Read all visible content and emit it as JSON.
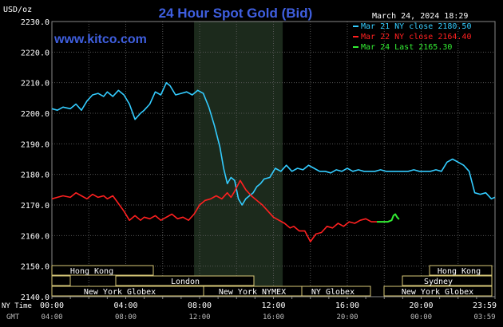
{
  "chart_data": {
    "type": "line",
    "title": "24 Hour Spot Gold (Bid)",
    "unit_label": "USD/oz",
    "site": "www.kitco.com",
    "timestamp": "March 24, 2024 18:29",
    "ylim": [
      2140,
      2230
    ],
    "y_ticks": [
      "2230.0",
      "2220.0",
      "2210.0",
      "2200.0",
      "2190.0",
      "2180.0",
      "2170.0",
      "2160.0",
      "2150.0",
      "2140.0"
    ],
    "x_label_ny": "NY Time",
    "x_label_gmt": "GMT",
    "x_ticks_ny": [
      "00:00",
      "04:00",
      "08:00",
      "12:00",
      "16:00",
      "20:00",
      "23:59"
    ],
    "x_ticks_gmt": [
      "04:00",
      "08:00",
      "12:00",
      "16:00",
      "20:00",
      "00:00",
      "03:59"
    ],
    "nymex_hours": [
      7.7,
      12.5
    ],
    "legend": [
      {
        "label": "Mar 21 NY close 2180.50",
        "color": "#33ccff"
      },
      {
        "label": "Mar 22 NY close 2164.40",
        "color": "#ff2020"
      },
      {
        "label": "Mar 24 Last 2165.30",
        "color": "#33ee33"
      }
    ],
    "sessions": [
      {
        "label": "Hong Kong",
        "start": 2.0,
        "end": 12.3,
        "row": 1
      },
      {
        "label": "London",
        "start": 0.0,
        "end": 24.0,
        "row": 2,
        "segments": [
          [
            0.0,
            0.9
          ],
          [
            7.8,
            24.0
          ]
        ]
      },
      {
        "label": "London",
        "start": 3.0,
        "end": 12.3,
        "row": 2
      },
      {
        "label": "New York Globex",
        "start": 0.0,
        "end": 7.7,
        "row": 3
      },
      {
        "label": "New York NYMEX",
        "start": 7.7,
        "end": 12.5,
        "row": 3
      },
      {
        "label": "NY Globex",
        "start": 12.5,
        "end": 17.0,
        "row": 3
      },
      {
        "label": "Hong Kong",
        "start": 18.8,
        "end": 24.0,
        "row": 1
      },
      {
        "label": "Sydney",
        "start": 17.0,
        "end": 24.0,
        "row": 2
      },
      {
        "label": "New York Globex",
        "start": 18.0,
        "end": 24.0,
        "row": 3
      }
    ],
    "series": [
      {
        "name": "Mar 21 NY close 2180.50",
        "color": "#33ccff",
        "x": [
          0,
          0.3,
          0.6,
          1.0,
          1.3,
          1.6,
          1.9,
          2.2,
          2.5,
          2.8,
          3.0,
          3.3,
          3.6,
          3.9,
          4.2,
          4.5,
          4.8,
          5.0,
          5.3,
          5.6,
          5.9,
          6.2,
          6.4,
          6.7,
          7.0,
          7.3,
          7.6,
          7.9,
          8.2,
          8.5,
          8.8,
          9.1,
          9.3,
          9.5,
          9.7,
          9.9,
          10.1,
          10.3,
          10.5,
          10.7,
          10.9,
          11.1,
          11.3,
          11.5,
          11.8,
          12.1,
          12.4,
          12.7,
          13.0,
          13.3,
          13.6,
          13.9,
          14.2,
          14.5,
          14.8,
          15.1,
          15.4,
          15.7,
          16.0,
          16.3,
          16.6,
          16.9,
          17.2,
          17.5,
          17.8,
          18.1,
          18.4,
          18.7,
          19.0,
          19.3,
          19.6,
          19.9,
          20.2,
          20.5,
          20.8,
          21.1,
          21.4,
          21.7,
          22.0,
          22.3,
          22.6,
          22.9,
          23.2,
          23.5,
          23.8,
          23.99
        ],
        "values": [
          2201.5,
          2201.0,
          2202.0,
          2201.5,
          2203.0,
          2201.0,
          2204.0,
          2206.0,
          2206.5,
          2205.5,
          2207.0,
          2205.5,
          2207.5,
          2206.0,
          2203.0,
          2198.0,
          2200.0,
          2201.0,
          2203.0,
          2207.0,
          2206.0,
          2210.0,
          2209.0,
          2206.0,
          2206.5,
          2207.0,
          2206.0,
          2207.5,
          2206.5,
          2202.0,
          2196.0,
          2189.0,
          2182.0,
          2177.0,
          2179.0,
          2178.0,
          2172.0,
          2170.0,
          2172.0,
          2173.0,
          2174.0,
          2176.0,
          2177.0,
          2178.5,
          2179.0,
          2182.0,
          2181.0,
          2183.0,
          2181.0,
          2182.0,
          2181.5,
          2183.0,
          2182.0,
          2181.0,
          2181.0,
          2180.5,
          2181.5,
          2181.0,
          2182.0,
          2181.0,
          2181.5,
          2181.0,
          2181.0,
          2181.0,
          2181.5,
          2181.0,
          2181.0,
          2181.0,
          2181.0,
          2181.0,
          2181.5,
          2181.0,
          2181.0,
          2181.0,
          2181.5,
          2181.0,
          2184.0,
          2185.0,
          2184.0,
          2183.0,
          2181.0,
          2174.0,
          2173.5,
          2174.0,
          2172.0,
          2172.5
        ]
      },
      {
        "name": "Mar 22 NY close 2164.40",
        "color": "#ff2020",
        "x": [
          0,
          0.3,
          0.6,
          1.0,
          1.3,
          1.6,
          1.9,
          2.2,
          2.5,
          2.8,
          3.0,
          3.3,
          3.6,
          3.9,
          4.2,
          4.5,
          4.8,
          5.0,
          5.3,
          5.6,
          5.9,
          6.2,
          6.5,
          6.8,
          7.1,
          7.4,
          7.7,
          8.0,
          8.3,
          8.6,
          8.9,
          9.2,
          9.5,
          9.7,
          9.9,
          10.2,
          10.5,
          10.8,
          11.1,
          11.4,
          11.7,
          12.0,
          12.3,
          12.6,
          12.9,
          13.1,
          13.4,
          13.7,
          14.0,
          14.3,
          14.6,
          14.9,
          15.2,
          15.5,
          15.8,
          16.1,
          16.4,
          16.7,
          17.0,
          17.3,
          17.6
        ],
        "values": [
          2172.0,
          2172.5,
          2173.0,
          2172.5,
          2174.0,
          2173.0,
          2172.0,
          2173.5,
          2172.5,
          2173.0,
          2172.0,
          2173.0,
          2170.5,
          2168.0,
          2165.0,
          2166.5,
          2165.0,
          2166.0,
          2165.5,
          2166.5,
          2165.0,
          2166.0,
          2167.0,
          2165.5,
          2166.0,
          2165.0,
          2167.0,
          2170.0,
          2171.5,
          2172.0,
          2173.0,
          2172.0,
          2174.0,
          2172.5,
          2174.5,
          2178.0,
          2175.0,
          2173.0,
          2171.5,
          2170.0,
          2168.0,
          2166.0,
          2165.0,
          2164.0,
          2162.5,
          2163.0,
          2161.5,
          2161.5,
          2158.0,
          2160.5,
          2161.0,
          2163.0,
          2162.5,
          2164.0,
          2163.0,
          2164.5,
          2164.0,
          2165.0,
          2165.5,
          2164.5,
          2164.5
        ]
      },
      {
        "name": "Mar 24 Last 2165.30",
        "color": "#33ee33",
        "x": [
          17.6,
          17.9,
          18.2,
          18.4,
          18.5,
          18.6,
          18.7,
          18.8
        ],
        "values": [
          2164.5,
          2164.5,
          2164.5,
          2165.0,
          2166.5,
          2167.0,
          2166.0,
          2165.3
        ]
      }
    ]
  }
}
